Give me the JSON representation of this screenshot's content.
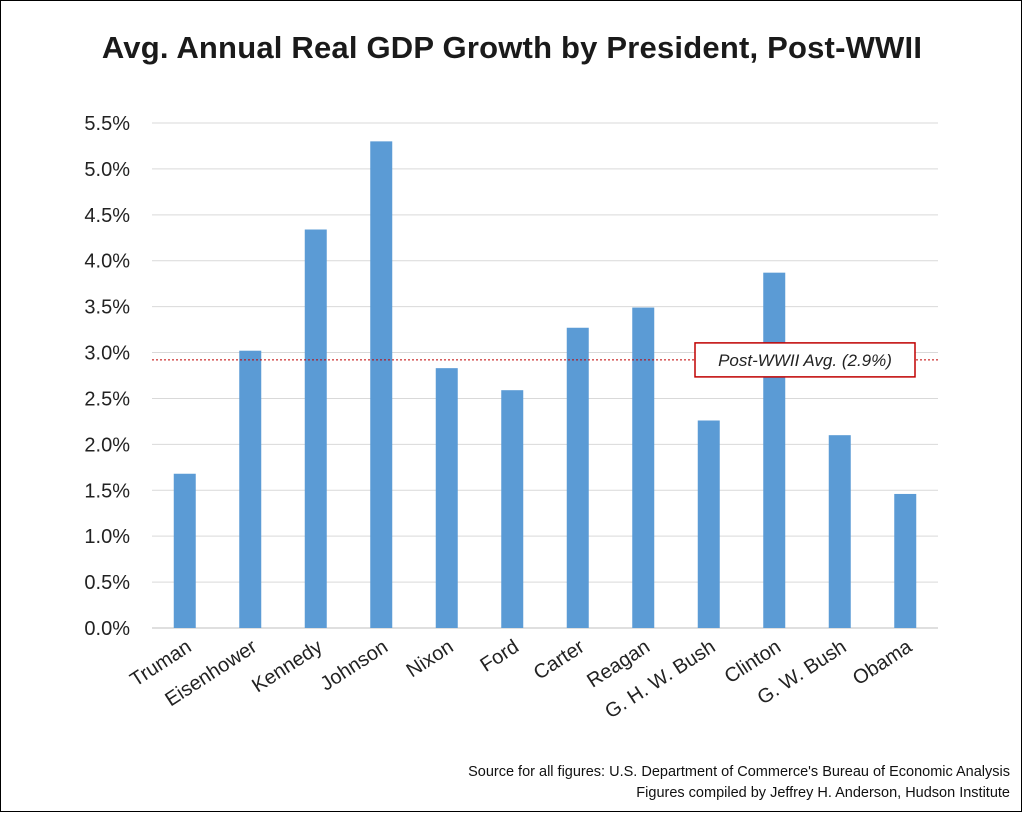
{
  "chart_data": {
    "type": "bar",
    "title": "Avg. Annual Real GDP Growth by President, Post-WWII",
    "categories": [
      "Truman",
      "Eisenhower",
      "Kennedy",
      "Johnson",
      "Nixon",
      "Ford",
      "Carter",
      "Reagan",
      "G. H. W. Bush",
      "Clinton",
      "G. W. Bush",
      "Obama"
    ],
    "series": [
      {
        "values": [
          1.68,
          3.02,
          4.34,
          5.3,
          2.83,
          2.59,
          3.27,
          3.49,
          2.26,
          3.87,
          2.1,
          1.46
        ]
      }
    ],
    "ylim": [
      0,
      5.5
    ],
    "yticks": [
      "0.0%",
      "0.5%",
      "1.0%",
      "1.5%",
      "2.0%",
      "2.5%",
      "3.0%",
      "3.5%",
      "4.0%",
      "4.5%",
      "5.0%",
      "5.5%"
    ],
    "grid": true,
    "bar_color": "#5b9bd5",
    "reference_line": {
      "value": 2.92,
      "label": "Post-WWII Avg. (2.9%)",
      "color": "#c00000"
    }
  },
  "source_lines": [
    "Source for all figures: U.S. Department of Commerce's Bureau of Economic Analysis",
    "Figures compiled by Jeffrey H. Anderson, Hudson Institute"
  ]
}
